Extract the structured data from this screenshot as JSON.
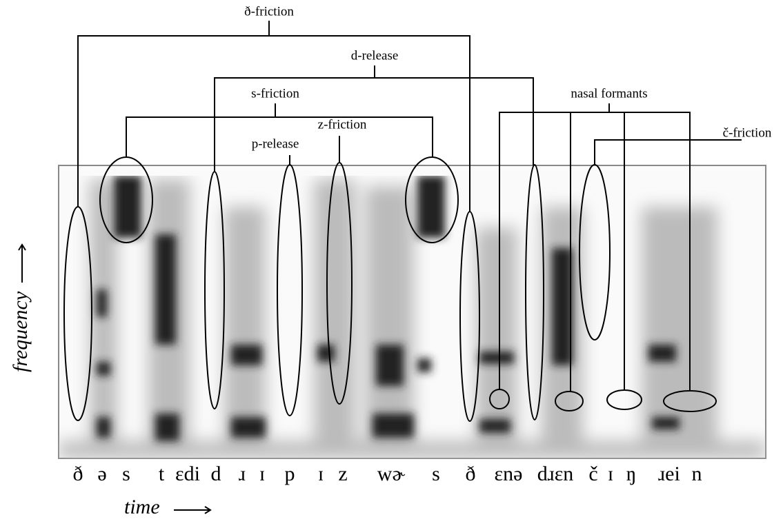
{
  "annotations": {
    "dh_friction": "ð-friction",
    "d_release": "d-release",
    "s_friction": "s-friction",
    "z_friction": "z-friction",
    "p_release": "p-release",
    "nasal_formants": "nasal formants",
    "ch_friction": "č-friction"
  },
  "axes": {
    "y_label": "frequency",
    "x_label": "time"
  },
  "transcription": [
    "ð",
    "ə",
    "s",
    "t",
    "ɛdi",
    "d",
    "ɹ",
    "ɪ",
    "p",
    "ɪ",
    "z",
    "wɚ",
    "s",
    "ð",
    "ɛnə",
    "dɹɛn",
    "č",
    "ɪ",
    "ŋ",
    "ɹei",
    "n"
  ]
}
